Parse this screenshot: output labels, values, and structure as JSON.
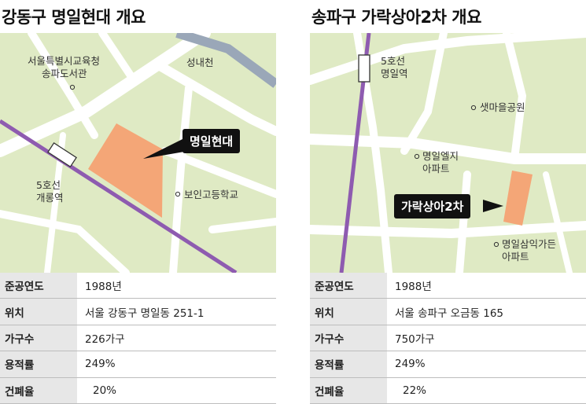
{
  "left": {
    "title": "강동구 명일현대 개요",
    "labels": {
      "library": [
        "서울특별시교육청",
        "송파도서관"
      ],
      "stream": "성내천",
      "callout": "명일현대",
      "station": [
        "5호선",
        "개롱역"
      ],
      "school": "보인고등학교"
    },
    "rows": [
      {
        "key": "준공연도",
        "value": "1988년"
      },
      {
        "key": "위치",
        "value": "서울 강동구 명일동 251-1"
      },
      {
        "key": "가구수",
        "value": "226가구"
      },
      {
        "key": "용적률",
        "value": "249%"
      },
      {
        "key": "건폐율",
        "value": "20%"
      }
    ]
  },
  "right": {
    "title": "송파구 가락상아2차 개요",
    "labels": {
      "station": [
        "5호선",
        "명일역"
      ],
      "park": "샛마을공원",
      "apt1": [
        "명일엘지",
        "아파트"
      ],
      "callout": "가락상아2차",
      "apt2": [
        "명일삼익가든",
        "아파트"
      ]
    },
    "rows": [
      {
        "key": "준공연도",
        "value": "1988년"
      },
      {
        "key": "위치",
        "value": "서울 송파구 오금동 165"
      },
      {
        "key": "가구수",
        "value": "750가구"
      },
      {
        "key": "용적률",
        "value": "249%"
      },
      {
        "key": "건폐율",
        "value": "22%"
      }
    ]
  },
  "colors": {
    "map_bg": "#dfeac4",
    "road": "#ffffff",
    "river": "#9aa7b8",
    "subway_line": "#8e5bb0",
    "site": "#f4a677",
    "callout_bg": "#111111"
  }
}
